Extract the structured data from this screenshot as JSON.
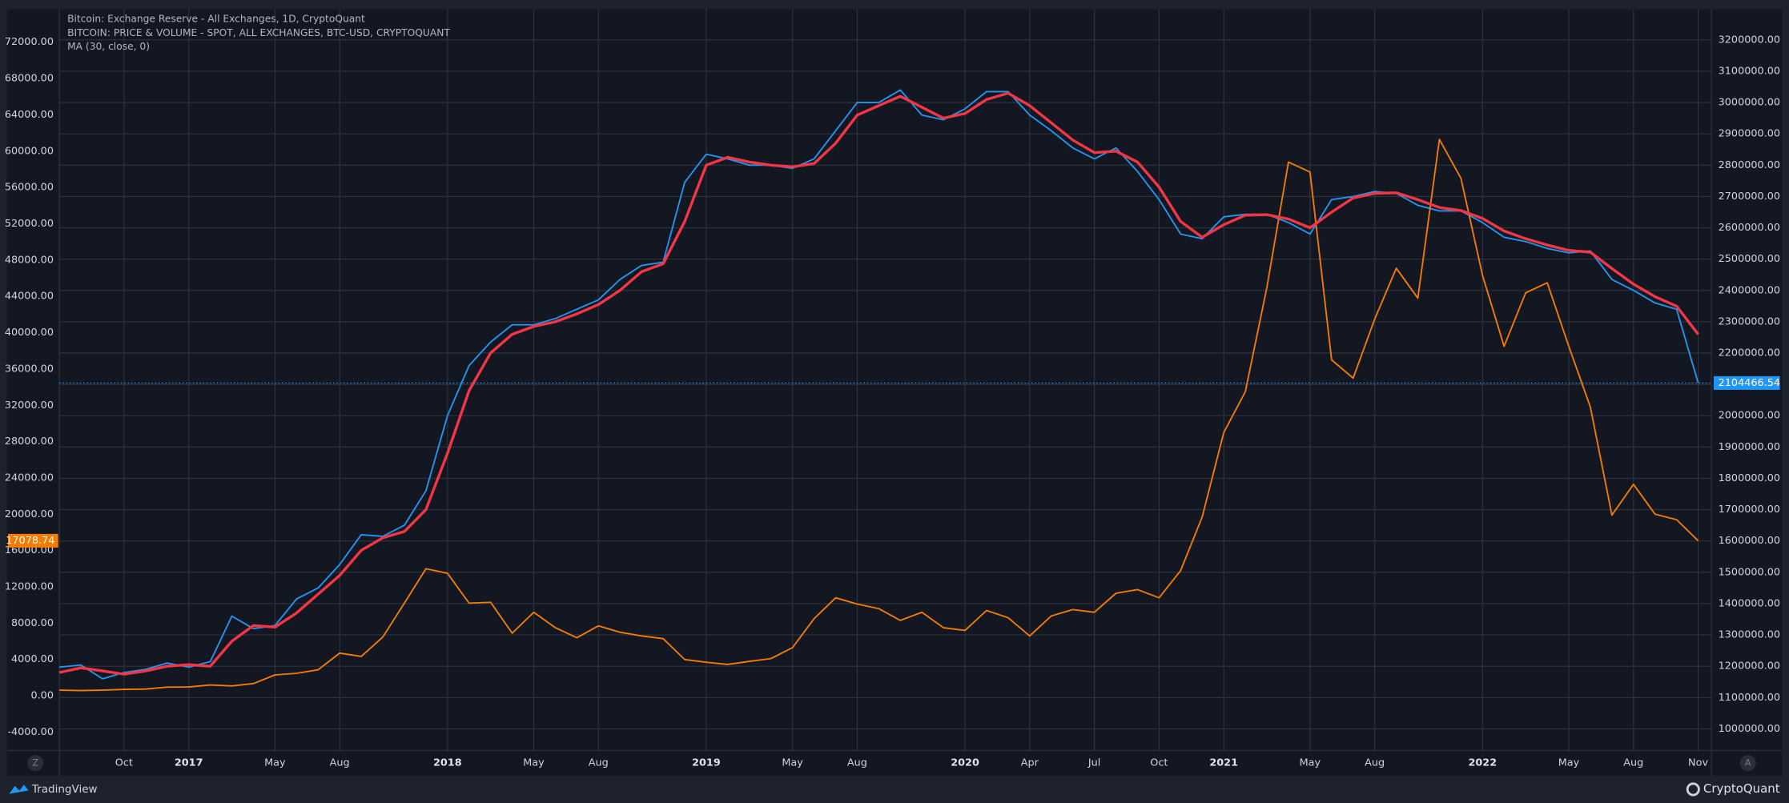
{
  "chart_data": {
    "type": "line",
    "categories": [
      null,
      null,
      null,
      "Oct",
      null,
      null,
      "2017",
      null,
      null,
      null,
      "May",
      null,
      null,
      "Aug",
      null,
      null,
      null,
      null,
      "2018",
      null,
      null,
      null,
      "May",
      null,
      null,
      "Aug",
      null,
      null,
      null,
      null,
      "2019",
      null,
      null,
      null,
      "May",
      null,
      null,
      "Aug",
      null,
      null,
      null,
      null,
      "2020",
      null,
      null,
      "Apr",
      null,
      null,
      "Jul",
      null,
      null,
      "Oct",
      null,
      null,
      "2021",
      null,
      null,
      null,
      "May",
      null,
      null,
      "Aug",
      null,
      null,
      null,
      null,
      "2022",
      null,
      null,
      null,
      "May",
      null,
      null,
      "Aug",
      null,
      null,
      "Nov"
    ],
    "series": [
      {
        "name": "Bitcoin: Exchange Reserve - All Exchanges, 1D, CryptoQuant",
        "color": "#2196f3",
        "axis": "y2",
        "values": [
          1197000,
          1204000,
          1160000,
          1180000,
          1190000,
          1210000,
          1197000,
          1215000,
          1360000,
          1320000,
          1330000,
          1415000,
          1450000,
          1525000,
          1620000,
          1615000,
          1650000,
          1760000,
          2000000,
          2160000,
          2235000,
          2290000,
          2290000,
          2310000,
          2340000,
          2370000,
          2435000,
          2480000,
          2490000,
          2745000,
          2835000,
          2820000,
          2800000,
          2800000,
          2790000,
          2820000,
          2910000,
          3000000,
          3000000,
          3040000,
          2960000,
          2945000,
          2980000,
          3035000,
          3035000,
          2960000,
          2910000,
          2855000,
          2820000,
          2855000,
          2780000,
          2690000,
          2580000,
          2565000,
          2635000,
          2643000,
          2643000,
          2617000,
          2580000,
          2690000,
          2700000,
          2716000,
          2710000,
          2672000,
          2654000,
          2654000,
          2617000,
          2570000,
          2556000,
          2534000,
          2520000,
          2526000,
          2435000,
          2400000,
          2360000,
          2340000,
          2104466.54
        ]
      },
      {
        "name": "BITCOIN: PRICE & VOLUME - SPOT, ALL EXCHANGES, BTC-USD, CRYPTOQUANT",
        "color": "#f57c00",
        "axis": "y",
        "values": [
          620,
          575,
          610,
          700,
          740,
          960,
          970,
          1190,
          1080,
          1350,
          2300,
          2480,
          2870,
          4700,
          4340,
          6470,
          10200,
          14000,
          13500,
          10200,
          10300,
          6900,
          9200,
          7500,
          6400,
          7700,
          7000,
          6600,
          6300,
          4000,
          3700,
          3450,
          3800,
          4100,
          5300,
          8500,
          10800,
          10100,
          9600,
          8300,
          9200,
          7500,
          7200,
          9400,
          8600,
          6600,
          8800,
          9500,
          9200,
          11300,
          11700,
          10800,
          13800,
          19700,
          29000,
          33500,
          45000,
          58800,
          57700,
          37000,
          35000,
          41500,
          47100,
          43800,
          61300,
          57000,
          46300,
          38500,
          44400,
          45500,
          38500,
          31800,
          19900,
          23300,
          20000,
          19400,
          17078.74
        ]
      },
      {
        "name": "MA (30, close, 0)",
        "color": "#f23645",
        "axis": "y2",
        "values": [
          1180000,
          1195000,
          1185000,
          1175000,
          1185000,
          1200000,
          1205000,
          1200000,
          1280000,
          1330000,
          1325000,
          1370000,
          1430000,
          1490000,
          1570000,
          1610000,
          1630000,
          1700000,
          1880000,
          2080000,
          2200000,
          2260000,
          2285000,
          2300000,
          2325000,
          2355000,
          2400000,
          2460000,
          2485000,
          2620000,
          2800000,
          2825000,
          2810000,
          2800000,
          2795000,
          2805000,
          2870000,
          2960000,
          2990000,
          3020000,
          2985000,
          2950000,
          2965000,
          3010000,
          3030000,
          2990000,
          2935000,
          2880000,
          2840000,
          2845000,
          2810000,
          2730000,
          2620000,
          2570000,
          2610000,
          2640000,
          2642000,
          2628000,
          2600000,
          2650000,
          2695000,
          2710000,
          2712000,
          2690000,
          2665000,
          2655000,
          2630000,
          2590000,
          2565000,
          2545000,
          2528000,
          2522000,
          2470000,
          2420000,
          2380000,
          2350000,
          2260000
        ]
      }
    ],
    "ylim": [
      -6031,
      75644
    ],
    "yticks": [
      {
        "value": -4000,
        "label": "-4000.00"
      },
      {
        "value": 0,
        "label": "0.00"
      },
      {
        "value": 4000,
        "label": "4000.00"
      },
      {
        "value": 8000,
        "label": "8000.00"
      },
      {
        "value": 12000,
        "label": "12000.00"
      },
      {
        "value": 16000,
        "label": "16000.00"
      },
      {
        "value": 20000,
        "label": "20000.00"
      },
      {
        "value": 24000,
        "label": "24000.00"
      },
      {
        "value": 28000,
        "label": "28000.00"
      },
      {
        "value": 32000,
        "label": "32000.00"
      },
      {
        "value": 36000,
        "label": "36000.00"
      },
      {
        "value": 40000,
        "label": "40000.00"
      },
      {
        "value": 44000,
        "label": "44000.00"
      },
      {
        "value": 48000,
        "label": "48000.00"
      },
      {
        "value": 52000,
        "label": "52000.00"
      },
      {
        "value": 56000,
        "label": "56000.00"
      },
      {
        "value": 60000,
        "label": "60000.00"
      },
      {
        "value": 64000,
        "label": "64000.00"
      },
      {
        "value": 68000,
        "label": "68000.00"
      },
      {
        "value": 72000,
        "label": "72000.00"
      }
    ],
    "y2lim": [
      930800,
      3298300
    ],
    "y2ticks": [
      {
        "value": 1000000,
        "label": "1000000.00"
      },
      {
        "value": 1100000,
        "label": "1100000.00"
      },
      {
        "value": 1200000,
        "label": "1200000.00"
      },
      {
        "value": 1300000,
        "label": "1300000.00"
      },
      {
        "value": 1400000,
        "label": "1400000.00"
      },
      {
        "value": 1500000,
        "label": "1500000.00"
      },
      {
        "value": 1600000,
        "label": "1600000.00"
      },
      {
        "value": 1700000,
        "label": "1700000.00"
      },
      {
        "value": 1800000,
        "label": "1800000.00"
      },
      {
        "value": 1900000,
        "label": "1900000.00"
      },
      {
        "value": 2000000,
        "label": "2000000.00"
      },
      {
        "value": 2100000,
        "label": "2100000.00"
      },
      {
        "value": 2200000,
        "label": "2200000.00"
      },
      {
        "value": 2300000,
        "label": "2300000.00"
      },
      {
        "value": 2400000,
        "label": "2400000.00"
      },
      {
        "value": 2500000,
        "label": "2500000.00"
      },
      {
        "value": 2600000,
        "label": "2600000.00"
      },
      {
        "value": 2700000,
        "label": "2700000.00"
      },
      {
        "value": 2800000,
        "label": "2800000.00"
      },
      {
        "value": 2900000,
        "label": "2900000.00"
      },
      {
        "value": 3000000,
        "label": "3000000.00"
      },
      {
        "value": 3100000,
        "label": "3100000.00"
      },
      {
        "value": 3200000,
        "label": "3200000.00"
      }
    ],
    "grid": true,
    "buttons": [
      "Z",
      "A"
    ],
    "footer": {
      "left": "TradingView",
      "right": "CryptoQuant"
    }
  }
}
